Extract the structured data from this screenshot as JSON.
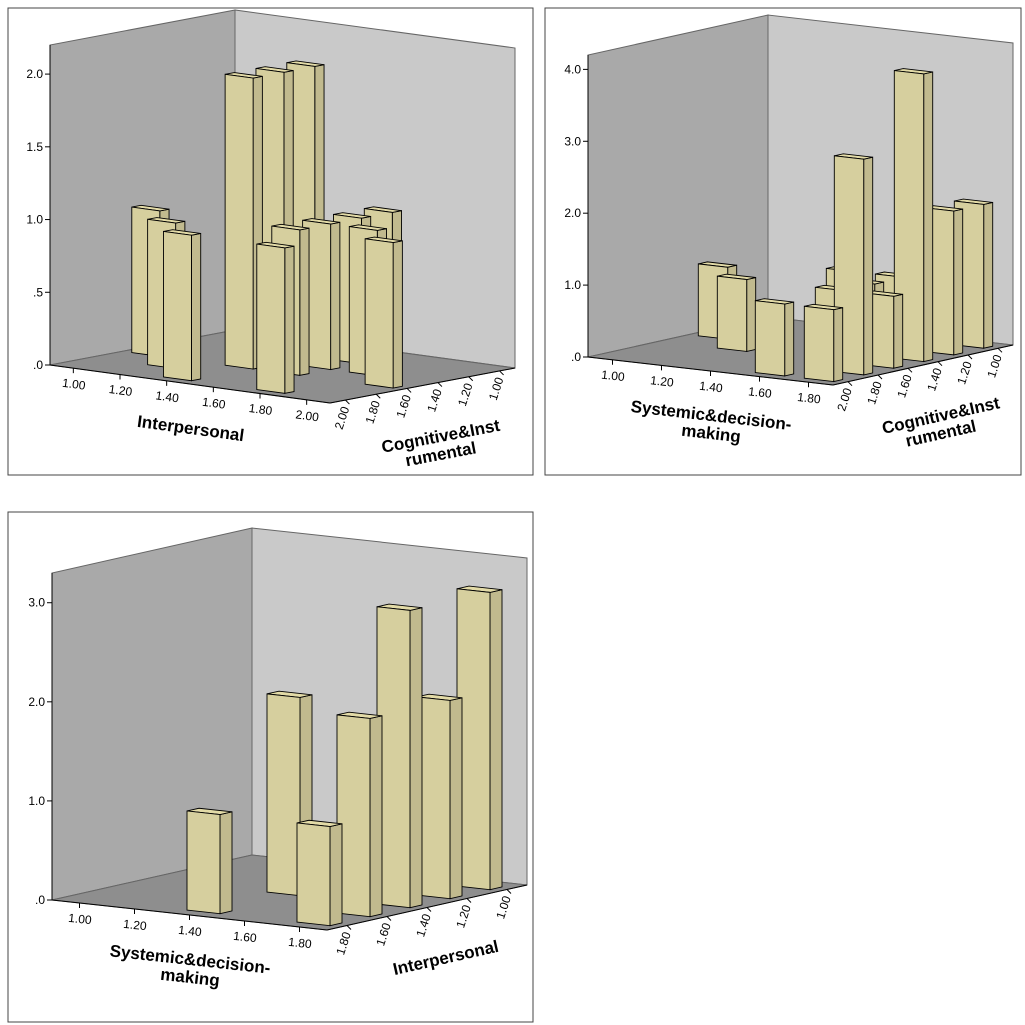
{
  "chart_data": [
    {
      "type": "bar3d",
      "color": "#d6cf9e",
      "x_label": [
        "Interpersonal"
      ],
      "z_label": [
        "Cognitive&Inst",
        "rumental"
      ],
      "categories": [
        "1.00",
        "1.20",
        "1.40",
        "1.60",
        "1.80",
        "2.00"
      ],
      "series": [
        {
          "name": "2.00",
          "values": [
            null,
            null,
            1,
            null,
            1,
            null
          ]
        },
        {
          "name": "1.80",
          "values": [
            null,
            1,
            null,
            null,
            null,
            null
          ]
        },
        {
          "name": "1.60",
          "values": [
            1,
            null,
            2,
            1,
            null,
            1
          ]
        },
        {
          "name": "1.40",
          "values": [
            null,
            null,
            2,
            1,
            1,
            null
          ]
        },
        {
          "name": "1.20",
          "values": [
            null,
            null,
            2,
            1,
            null,
            null
          ]
        },
        {
          "name": "1.00",
          "values": [
            null,
            null,
            null,
            1,
            null,
            null
          ]
        }
      ],
      "ylim": [
        0,
        2.2
      ],
      "yticks": [
        {
          "value": 0,
          "label": ".0"
        },
        {
          "value": 0.5,
          "label": ".5"
        },
        {
          "value": 1,
          "label": "1.0"
        },
        {
          "value": 1.5,
          "label": "1.5"
        },
        {
          "value": 2,
          "label": "2.0"
        }
      ]
    },
    {
      "type": "bar3d",
      "color": "#d6cf9e",
      "x_label": [
        "Systemic&decision-",
        "making"
      ],
      "z_label": [
        "Cognitive&Inst",
        "rumental"
      ],
      "categories": [
        "1.00",
        "1.20",
        "1.40",
        "1.60",
        "1.80"
      ],
      "series": [
        {
          "name": "2.00",
          "values": [
            null,
            null,
            null,
            1,
            1
          ]
        },
        {
          "name": "1.80",
          "values": [
            null,
            null,
            null,
            null,
            3
          ]
        },
        {
          "name": "1.60",
          "values": [
            null,
            1,
            null,
            1,
            1
          ]
        },
        {
          "name": "1.40",
          "values": [
            1,
            null,
            null,
            1,
            4
          ]
        },
        {
          "name": "1.20",
          "values": [
            null,
            null,
            1,
            1,
            2
          ]
        },
        {
          "name": "1.00",
          "values": [
            null,
            null,
            null,
            null,
            2
          ]
        }
      ],
      "ylim": [
        0,
        4.2
      ],
      "yticks": [
        {
          "value": 0,
          "label": ".0"
        },
        {
          "value": 1,
          "label": "1.0"
        },
        {
          "value": 2,
          "label": "2.0"
        },
        {
          "value": 3,
          "label": "3.0"
        },
        {
          "value": 4,
          "label": "4.0"
        }
      ]
    },
    {
      "type": "bar3d",
      "color": "#d6cf9e",
      "x_label": [
        "Systemic&decision-",
        "making"
      ],
      "z_label": [
        "Interpersonal"
      ],
      "categories": [
        "1.00",
        "1.20",
        "1.40",
        "1.60",
        "1.80"
      ],
      "series": [
        {
          "name": "1.80",
          "values": [
            null,
            null,
            1,
            null,
            1
          ]
        },
        {
          "name": "1.60",
          "values": [
            null,
            null,
            null,
            null,
            2
          ]
        },
        {
          "name": "1.40",
          "values": [
            null,
            null,
            2,
            null,
            3
          ]
        },
        {
          "name": "1.20",
          "values": [
            null,
            null,
            null,
            null,
            2
          ]
        },
        {
          "name": "1.00",
          "values": [
            null,
            null,
            null,
            1,
            3
          ]
        }
      ],
      "ylim": [
        0,
        3.3
      ],
      "yticks": [
        {
          "value": 0,
          "label": ".0"
        },
        {
          "value": 1,
          "label": "1.0"
        },
        {
          "value": 2,
          "label": "2.0"
        },
        {
          "value": 3,
          "label": "3.0"
        }
      ]
    }
  ]
}
